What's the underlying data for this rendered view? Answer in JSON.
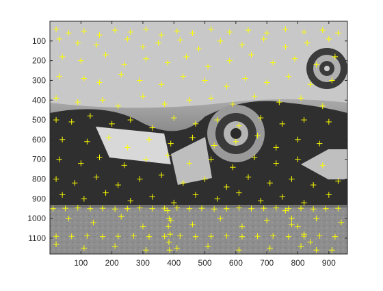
{
  "chart_data": {
    "type": "scatter",
    "title": "",
    "xlabel": "",
    "ylabel": "",
    "xlim": [
      0,
      960
    ],
    "ylim": [
      1180,
      0
    ],
    "y_reversed": true,
    "x_ticks": [
      100,
      200,
      300,
      400,
      500,
      600,
      700,
      800,
      900
    ],
    "y_ticks": [
      100,
      200,
      300,
      400,
      500,
      600,
      700,
      800,
      900,
      1000,
      1100
    ],
    "grid": false,
    "legend": "none",
    "marker": "+",
    "marker_color": "#ffff00",
    "background_image": "grayscale-photo-wall-targets",
    "series": [
      {
        "name": "",
        "points": [
          [
            20,
            40
          ],
          [
            60,
            60
          ],
          [
            110,
            50
          ],
          [
            160,
            70
          ],
          [
            210,
            45
          ],
          [
            260,
            55
          ],
          [
            310,
            40
          ],
          [
            360,
            70
          ],
          [
            410,
            50
          ],
          [
            460,
            60
          ],
          [
            520,
            40
          ],
          [
            580,
            55
          ],
          [
            640,
            45
          ],
          [
            700,
            60
          ],
          [
            760,
            40
          ],
          [
            820,
            55
          ],
          [
            880,
            45
          ],
          [
            930,
            60
          ],
          [
            30,
            90
          ],
          [
            90,
            110
          ],
          [
            150,
            120
          ],
          [
            250,
            90
          ],
          [
            300,
            130
          ],
          [
            350,
            110
          ],
          [
            420,
            95
          ],
          [
            480,
            140
          ],
          [
            550,
            100
          ],
          [
            620,
            120
          ],
          [
            690,
            90
          ],
          [
            760,
            130
          ],
          [
            830,
            110
          ],
          [
            900,
            90
          ],
          [
            40,
            180
          ],
          [
            100,
            200
          ],
          [
            180,
            170
          ],
          [
            240,
            220
          ],
          [
            310,
            190
          ],
          [
            380,
            210
          ],
          [
            440,
            180
          ],
          [
            510,
            230
          ],
          [
            580,
            200
          ],
          [
            650,
            170
          ],
          [
            720,
            210
          ],
          [
            790,
            190
          ],
          [
            860,
            220
          ],
          [
            920,
            180
          ],
          [
            30,
            280
          ],
          [
            110,
            290
          ],
          [
            160,
            310
          ],
          [
            230,
            270
          ],
          [
            290,
            300
          ],
          [
            360,
            320
          ],
          [
            430,
            280
          ],
          [
            500,
            300
          ],
          [
            570,
            330
          ],
          [
            630,
            290
          ],
          [
            700,
            310
          ],
          [
            770,
            280
          ],
          [
            840,
            320
          ],
          [
            910,
            300
          ],
          [
            20,
            390
          ],
          [
            90,
            410
          ],
          [
            170,
            400
          ],
          [
            220,
            430
          ],
          [
            300,
            380
          ],
          [
            370,
            420
          ],
          [
            450,
            400
          ],
          [
            520,
            390
          ],
          [
            590,
            420
          ],
          [
            660,
            380
          ],
          [
            740,
            410
          ],
          [
            810,
            390
          ],
          [
            880,
            430
          ],
          [
            20,
            500
          ],
          [
            70,
            510
          ],
          [
            130,
            480
          ],
          [
            200,
            520
          ],
          [
            260,
            500
          ],
          [
            330,
            540
          ],
          [
            400,
            490
          ],
          [
            470,
            520
          ],
          [
            540,
            500
          ],
          [
            610,
            530
          ],
          [
            680,
            490
          ],
          [
            750,
            520
          ],
          [
            820,
            500
          ],
          [
            900,
            510
          ],
          [
            40,
            600
          ],
          [
            120,
            610
          ],
          [
            190,
            590
          ],
          [
            250,
            640
          ],
          [
            320,
            600
          ],
          [
            390,
            620
          ],
          [
            460,
            590
          ],
          [
            530,
            630
          ],
          [
            600,
            610
          ],
          [
            670,
            580
          ],
          [
            730,
            640
          ],
          [
            800,
            600
          ],
          [
            870,
            620
          ],
          [
            30,
            700
          ],
          [
            100,
            720
          ],
          [
            160,
            690
          ],
          [
            240,
            730
          ],
          [
            310,
            700
          ],
          [
            380,
            680
          ],
          [
            450,
            720
          ],
          [
            520,
            700
          ],
          [
            590,
            740
          ],
          [
            660,
            690
          ],
          [
            730,
            720
          ],
          [
            800,
            700
          ],
          [
            880,
            730
          ],
          [
            20,
            800
          ],
          [
            80,
            820
          ],
          [
            150,
            790
          ],
          [
            220,
            830
          ],
          [
            290,
            800
          ],
          [
            360,
            780
          ],
          [
            430,
            820
          ],
          [
            500,
            800
          ],
          [
            570,
            840
          ],
          [
            640,
            790
          ],
          [
            710,
            820
          ],
          [
            780,
            800
          ],
          [
            850,
            830
          ],
          [
            930,
            810
          ],
          [
            40,
            880
          ],
          [
            110,
            900
          ],
          [
            180,
            870
          ],
          [
            260,
            910
          ],
          [
            330,
            890
          ],
          [
            400,
            920
          ],
          [
            470,
            880
          ],
          [
            540,
            900
          ],
          [
            610,
            870
          ],
          [
            680,
            910
          ],
          [
            750,
            890
          ],
          [
            820,
            920
          ],
          [
            900,
            880
          ],
          [
            10,
            950
          ],
          [
            50,
            948
          ],
          [
            90,
            946
          ],
          [
            130,
            950
          ],
          [
            170,
            948
          ],
          [
            210,
            952
          ],
          [
            250,
            950
          ],
          [
            290,
            946
          ],
          [
            330,
            950
          ],
          [
            370,
            948
          ],
          [
            410,
            946
          ],
          [
            450,
            950
          ],
          [
            490,
            948
          ],
          [
            530,
            952
          ],
          [
            570,
            950
          ],
          [
            610,
            946
          ],
          [
            650,
            950
          ],
          [
            690,
            948
          ],
          [
            730,
            946
          ],
          [
            770,
            950
          ],
          [
            810,
            948
          ],
          [
            850,
            952
          ],
          [
            890,
            950
          ],
          [
            930,
            948
          ],
          [
            60,
            1000
          ],
          [
            140,
            1020
          ],
          [
            230,
            990
          ],
          [
            300,
            1040
          ],
          [
            390,
            1010
          ],
          [
            460,
            1030
          ],
          [
            550,
            1000
          ],
          [
            620,
            1040
          ],
          [
            700,
            1010
          ],
          [
            780,
            1030
          ],
          [
            860,
            1000
          ],
          [
            940,
            1020
          ],
          [
            20,
            1090
          ],
          [
            70,
            1090
          ],
          [
            120,
            1088
          ],
          [
            170,
            1092
          ],
          [
            220,
            1090
          ],
          [
            270,
            1088
          ],
          [
            320,
            1092
          ],
          [
            370,
            1090
          ],
          [
            420,
            1088
          ],
          [
            470,
            1092
          ],
          [
            520,
            1090
          ],
          [
            570,
            1088
          ],
          [
            620,
            1092
          ],
          [
            670,
            1090
          ],
          [
            720,
            1088
          ],
          [
            770,
            1092
          ],
          [
            820,
            1090
          ],
          [
            870,
            1088
          ],
          [
            920,
            1092
          ],
          [
            380,
            960
          ],
          [
            385,
            1000
          ],
          [
            382,
            1040
          ],
          [
            388,
            1080
          ],
          [
            384,
            1120
          ],
          [
            386,
            1160
          ],
          [
            760,
            960
          ],
          [
            780,
            1000
          ],
          [
            800,
            1040
          ],
          [
            820,
            1080
          ],
          [
            840,
            1120
          ],
          [
            860,
            1160
          ],
          [
            20,
            1130
          ],
          [
            110,
            1150
          ],
          [
            210,
            1140
          ],
          [
            310,
            1160
          ],
          [
            410,
            1150
          ],
          [
            510,
            1140
          ],
          [
            610,
            1160
          ],
          [
            710,
            1150
          ],
          [
            810,
            1140
          ],
          [
            910,
            1160
          ]
        ]
      }
    ]
  }
}
